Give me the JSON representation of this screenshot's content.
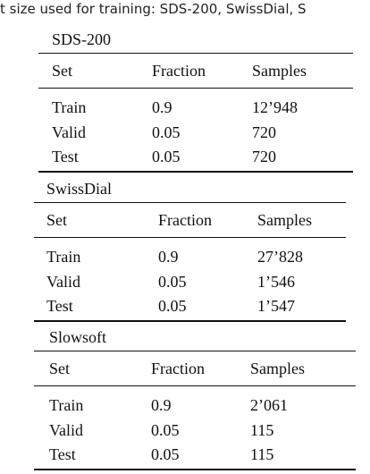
{
  "caption": "t size used for training: SDS-200, SwissDial, S",
  "tables": [
    {
      "title": "SDS-200",
      "header": [
        "Set",
        "Fraction",
        "Samples"
      ],
      "rows": [
        [
          "Train",
          "0.9",
          "12’948"
        ],
        [
          "Valid",
          "0.05",
          "720"
        ],
        [
          "Test",
          "0.05",
          "720"
        ]
      ]
    },
    {
      "title": "SwissDial",
      "header": [
        "Set",
        "Fraction",
        "Samples"
      ],
      "rows": [
        [
          "Train",
          "0.9",
          "27’828"
        ],
        [
          "Valid",
          "0.05",
          "1’546"
        ],
        [
          "Test",
          "0.05",
          "1’547"
        ]
      ]
    },
    {
      "title": "Slowsoft",
      "header": [
        "Set",
        "Fraction",
        "Samples"
      ],
      "rows": [
        [
          "Train",
          "0.9",
          "2’061"
        ],
        [
          "Valid",
          "0.05",
          "115"
        ],
        [
          "Test",
          "0.05",
          "115"
        ]
      ]
    }
  ]
}
